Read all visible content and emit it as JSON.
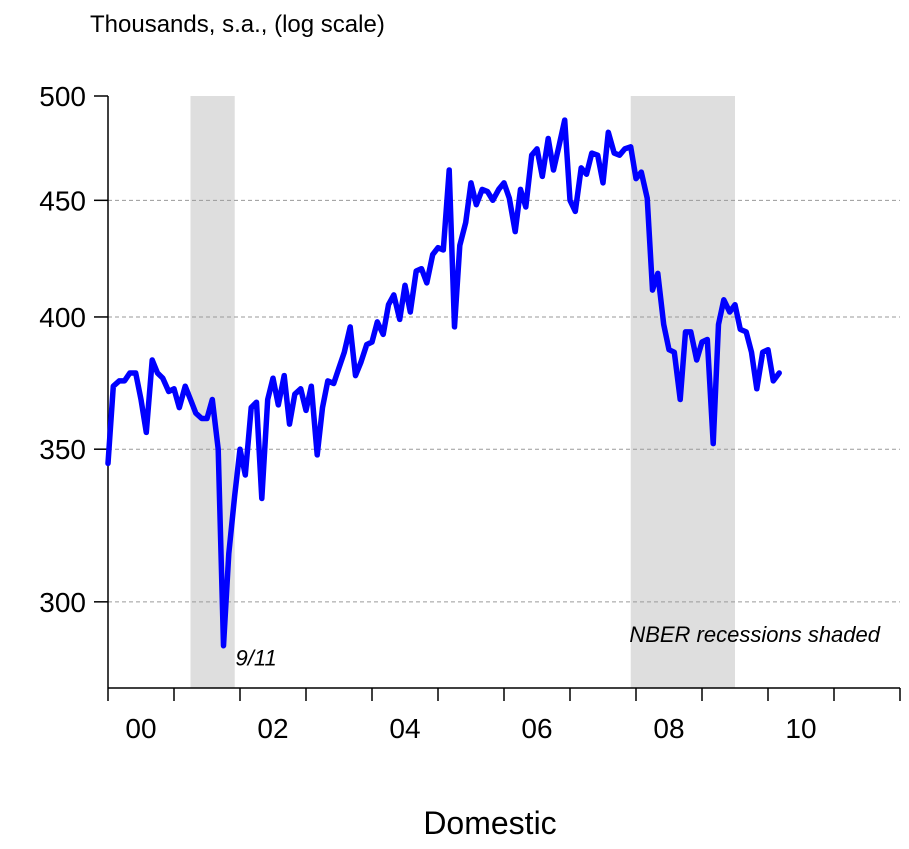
{
  "chart_data": {
    "type": "line",
    "title": "Domestic",
    "ylabel": "Thousands, s.a., (log scale)",
    "xlabel": "",
    "y_scale": "log",
    "ylim": [
      275,
      500
    ],
    "yticks": [
      300,
      350,
      400,
      450,
      500
    ],
    "xlim": [
      2000.0,
      2012.0
    ],
    "xticks": [
      {
        "value": 2000,
        "label": "00"
      },
      {
        "value": 2002,
        "label": "02"
      },
      {
        "value": 2004,
        "label": "04"
      },
      {
        "value": 2006,
        "label": "06"
      },
      {
        "value": 2008,
        "label": "08"
      },
      {
        "value": 2010,
        "label": "10"
      }
    ],
    "grid": "horizontal-dashed",
    "recessions": [
      {
        "start": 2001.25,
        "end": 2001.92
      },
      {
        "start": 2007.92,
        "end": 2009.5
      }
    ],
    "recession_note": "NBER recessions shaded",
    "annotations": [
      {
        "text": "9/11",
        "x": 2001.75,
        "y": 287
      }
    ],
    "line_color": "#0000ff",
    "series": [
      {
        "values": [
          [
            2000.0,
            345
          ],
          [
            2000.08,
            373
          ],
          [
            2000.17,
            375
          ],
          [
            2000.25,
            375
          ],
          [
            2000.33,
            378
          ],
          [
            2000.42,
            378
          ],
          [
            2000.5,
            368
          ],
          [
            2000.58,
            356
          ],
          [
            2000.67,
            383
          ],
          [
            2000.75,
            378
          ],
          [
            2000.83,
            376
          ],
          [
            2000.92,
            371
          ],
          [
            2001.0,
            372
          ],
          [
            2001.08,
            365
          ],
          [
            2001.17,
            373
          ],
          [
            2001.25,
            368
          ],
          [
            2001.33,
            363
          ],
          [
            2001.42,
            361
          ],
          [
            2001.5,
            361
          ],
          [
            2001.58,
            368
          ],
          [
            2001.67,
            350
          ],
          [
            2001.75,
            287
          ],
          [
            2001.83,
            315
          ],
          [
            2001.92,
            334
          ],
          [
            2002.0,
            350
          ],
          [
            2002.08,
            341
          ],
          [
            2002.17,
            365
          ],
          [
            2002.25,
            367
          ],
          [
            2002.33,
            333
          ],
          [
            2002.42,
            368
          ],
          [
            2002.5,
            376
          ],
          [
            2002.58,
            366
          ],
          [
            2002.67,
            377
          ],
          [
            2002.75,
            359
          ],
          [
            2002.83,
            370
          ],
          [
            2002.92,
            372
          ],
          [
            2003.0,
            364
          ],
          [
            2003.08,
            373
          ],
          [
            2003.17,
            348
          ],
          [
            2003.25,
            365
          ],
          [
            2003.33,
            375
          ],
          [
            2003.42,
            374
          ],
          [
            2003.5,
            380
          ],
          [
            2003.58,
            386
          ],
          [
            2003.67,
            396
          ],
          [
            2003.75,
            377
          ],
          [
            2003.83,
            382
          ],
          [
            2003.92,
            389
          ],
          [
            2004.0,
            390
          ],
          [
            2004.08,
            398
          ],
          [
            2004.17,
            393
          ],
          [
            2004.25,
            405
          ],
          [
            2004.33,
            409
          ],
          [
            2004.42,
            399
          ],
          [
            2004.5,
            413
          ],
          [
            2004.58,
            402
          ],
          [
            2004.67,
            419
          ],
          [
            2004.75,
            420
          ],
          [
            2004.83,
            414
          ],
          [
            2004.92,
            426
          ],
          [
            2005.0,
            429
          ],
          [
            2005.08,
            428
          ],
          [
            2005.17,
            464
          ],
          [
            2005.25,
            396
          ],
          [
            2005.33,
            430
          ],
          [
            2005.42,
            440
          ],
          [
            2005.5,
            458
          ],
          [
            2005.58,
            448
          ],
          [
            2005.67,
            455
          ],
          [
            2005.75,
            454
          ],
          [
            2005.83,
            450
          ],
          [
            2005.92,
            455
          ],
          [
            2006.0,
            458
          ],
          [
            2006.08,
            451
          ],
          [
            2006.17,
            436
          ],
          [
            2006.25,
            455
          ],
          [
            2006.33,
            447
          ],
          [
            2006.42,
            471
          ],
          [
            2006.5,
            474
          ],
          [
            2006.58,
            461
          ],
          [
            2006.67,
            479
          ],
          [
            2006.75,
            464
          ],
          [
            2006.83,
            475
          ],
          [
            2006.92,
            488
          ],
          [
            2007.0,
            450
          ],
          [
            2007.08,
            445
          ],
          [
            2007.17,
            465
          ],
          [
            2007.25,
            462
          ],
          [
            2007.33,
            472
          ],
          [
            2007.42,
            471
          ],
          [
            2007.5,
            458
          ],
          [
            2007.58,
            482
          ],
          [
            2007.67,
            472
          ],
          [
            2007.75,
            471
          ],
          [
            2007.83,
            474
          ],
          [
            2007.92,
            475
          ],
          [
            2008.0,
            460
          ],
          [
            2008.08,
            463
          ],
          [
            2008.17,
            451
          ],
          [
            2008.25,
            411
          ],
          [
            2008.33,
            418
          ],
          [
            2008.42,
            397
          ],
          [
            2008.5,
            387
          ],
          [
            2008.58,
            386
          ],
          [
            2008.67,
            368
          ],
          [
            2008.75,
            394
          ],
          [
            2008.83,
            394
          ],
          [
            2008.92,
            383
          ],
          [
            2009.0,
            390
          ],
          [
            2009.08,
            391
          ],
          [
            2009.17,
            352
          ],
          [
            2009.25,
            397
          ],
          [
            2009.33,
            407
          ],
          [
            2009.42,
            402
          ],
          [
            2009.5,
            405
          ],
          [
            2009.58,
            395
          ],
          [
            2009.67,
            394
          ],
          [
            2009.75,
            386
          ],
          [
            2009.83,
            372
          ],
          [
            2009.92,
            386
          ],
          [
            2010.0,
            387
          ],
          [
            2010.08,
            375
          ],
          [
            2010.17,
            378
          ]
        ]
      }
    ]
  }
}
